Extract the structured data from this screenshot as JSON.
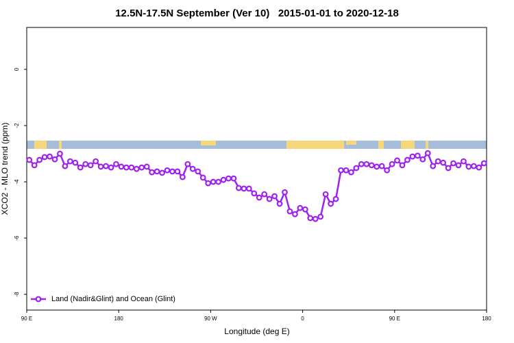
{
  "chart_data": {
    "type": "line",
    "title": "12.5N-17.5N September (Ver 10)   2015-01-01 to 2020-12-18",
    "xlabel": "Longitude (deg E)",
    "ylabel": "XCO2 - MLO trend (ppm)",
    "xlim": [
      90,
      540
    ],
    "ylim": [
      1.49,
      -8.56
    ],
    "xticks": [
      {
        "value": 90,
        "label": "90 E"
      },
      180,
      {
        "value": 270,
        "label": "90 W"
      },
      {
        "value": 360,
        "label": "0"
      },
      {
        "value": 450,
        "label": "90 E"
      },
      {
        "value": 540,
        "label": "180"
      }
    ],
    "yticks": [
      0,
      -2,
      -4,
      -6,
      -8
    ],
    "legend": "bottom-left",
    "x": [
      92.5,
      97.5,
      102.5,
      107.5,
      112.5,
      117.5,
      122.5,
      127.5,
      132.5,
      137.5,
      142.5,
      147.5,
      152.5,
      157.5,
      162.5,
      167.5,
      172.5,
      177.5,
      182.5,
      187.5,
      192.5,
      197.5,
      202.5,
      207.5,
      212.5,
      217.5,
      222.5,
      227.5,
      232.5,
      237.5,
      242.5,
      247.5,
      252.5,
      257.5,
      262.5,
      267.5,
      272.5,
      277.5,
      282.5,
      287.5,
      292.5,
      297.5,
      302.5,
      307.5,
      312.5,
      317.5,
      322.5,
      327.5,
      332.5,
      337.5,
      342.5,
      347.5,
      352.5,
      357.5,
      362.5,
      367.5,
      372.5,
      377.5,
      382.5,
      387.5,
      392.5,
      397.5,
      402.5,
      407.5,
      412.5,
      417.5,
      422.5,
      427.5,
      432.5,
      437.5,
      442.5,
      447.5,
      452.5,
      457.5,
      462.5,
      467.5,
      472.5,
      477.5,
      482.5,
      487.5,
      492.5,
      497.5,
      502.5,
      507.5,
      512.5,
      517.5,
      522.5,
      527.5,
      532.5,
      537.5
    ],
    "series": [
      {
        "name": "Land (Nadir&Glint) and Ocean (Glint)",
        "color": "#a020f0",
        "values": [
          -3.22,
          -3.41,
          -3.22,
          -3.12,
          -3.1,
          -3.2,
          -3.0,
          -3.44,
          -3.27,
          -3.32,
          -3.49,
          -3.37,
          -3.41,
          -3.27,
          -3.46,
          -3.44,
          -3.49,
          -3.37,
          -3.46,
          -3.49,
          -3.49,
          -3.54,
          -3.49,
          -3.46,
          -3.66,
          -3.63,
          -3.68,
          -3.59,
          -3.63,
          -3.63,
          -3.83,
          -3.37,
          -3.54,
          -3.63,
          -3.85,
          -4.05,
          -4.0,
          -4.0,
          -3.93,
          -3.88,
          -3.88,
          -4.22,
          -4.24,
          -4.24,
          -4.41,
          -4.56,
          -4.44,
          -4.61,
          -4.51,
          -4.78,
          -4.37,
          -5.05,
          -5.15,
          -4.93,
          -4.98,
          -5.29,
          -5.32,
          -5.24,
          -4.44,
          -4.78,
          -4.61,
          -3.59,
          -3.59,
          -3.66,
          -3.51,
          -3.37,
          -3.37,
          -3.41,
          -3.46,
          -3.44,
          -3.59,
          -3.37,
          -3.24,
          -3.41,
          -3.22,
          -3.1,
          -3.07,
          -3.2,
          -2.98,
          -3.44,
          -3.27,
          -3.32,
          -3.51,
          -3.34,
          -3.41,
          -3.27,
          -3.46,
          -3.44,
          -3.49,
          -3.34
        ]
      }
    ]
  }
}
